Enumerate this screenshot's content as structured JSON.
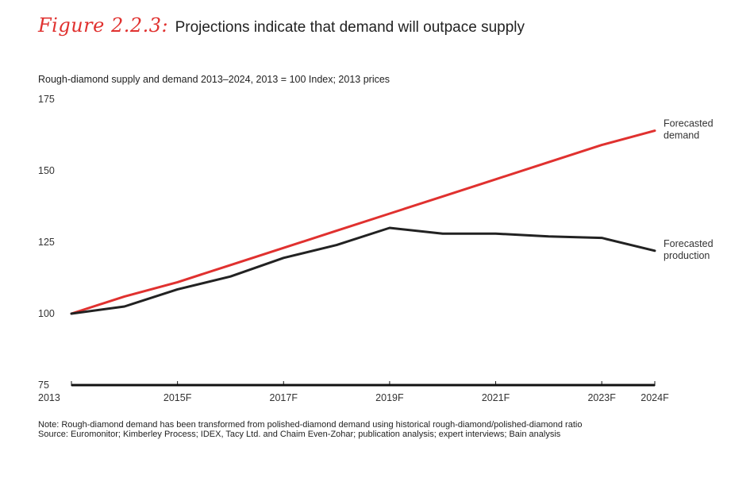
{
  "figure": {
    "label": "Figure 2.2.3:",
    "title": "Projections indicate that demand will outpace supply"
  },
  "chart_data": {
    "type": "line",
    "title": "Projections indicate that demand will outpace supply",
    "subtitle": "Rough-diamond supply and demand 2013–2024, 2013 = 100 Index; 2013 prices",
    "xlabel": "",
    "ylabel": "",
    "x": [
      2013,
      2014,
      2015,
      2016,
      2017,
      2018,
      2019,
      2020,
      2021,
      2022,
      2023,
      2024
    ],
    "x_tick_labels": [
      {
        "x": 2013,
        "label": "2013"
      },
      {
        "x": 2015,
        "label": "2015F"
      },
      {
        "x": 2017,
        "label": "2017F"
      },
      {
        "x": 2019,
        "label": "2019F"
      },
      {
        "x": 2021,
        "label": "2021F"
      },
      {
        "x": 2023,
        "label": "2023F"
      },
      {
        "x": 2024,
        "label": "2024F"
      }
    ],
    "xlim": [
      2013,
      2024
    ],
    "ylim": [
      75,
      175
    ],
    "y_ticks": [
      75,
      100,
      125,
      150,
      175
    ],
    "grid": false,
    "series": [
      {
        "name": "Forecasted demand",
        "label_lines": [
          "Forecasted",
          "demand"
        ],
        "color": "#e0312f",
        "values": [
          100,
          106,
          111,
          117,
          123,
          129,
          135,
          141,
          147,
          153,
          159,
          164
        ]
      },
      {
        "name": "Forecasted production",
        "label_lines": [
          "Forecasted",
          "production"
        ],
        "color": "#222222",
        "values": [
          100,
          102.5,
          108.5,
          113,
          119.5,
          124,
          130,
          128,
          128,
          127,
          126.5,
          122
        ]
      }
    ]
  },
  "notes": {
    "note": "Note:  Rough-diamond demand has been transformed from polished-diamond demand using historical rough-diamond/polished-diamond ratio",
    "source": "Source: Euromonitor; Kimberley Process; IDEX, Tacy Ltd. and Chaim Even-Zohar; publication analysis; expert interviews; Bain analysis"
  }
}
